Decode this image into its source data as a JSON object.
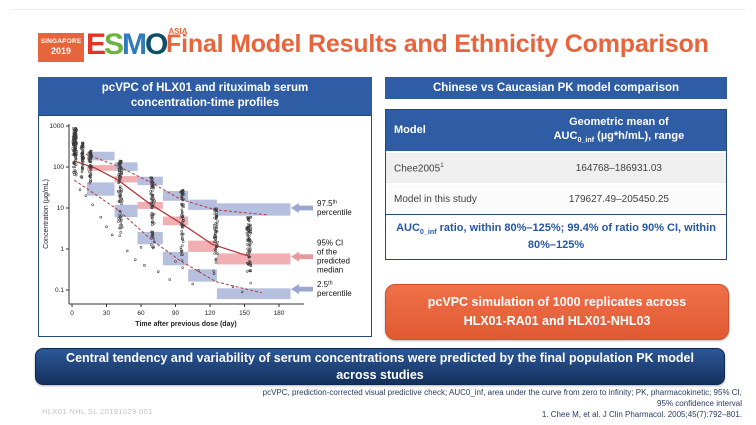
{
  "colors": {
    "accent_blue": "#2e5da6",
    "accent_orange": "#e8643c",
    "dark_navy": "#14305c",
    "box_blue": "#a9b4d8",
    "box_pink": "#f0a6ac",
    "line_red": "#b23b3b",
    "arrow_blue": "#9aa6cf",
    "arrow_pink": "#e79a9e"
  },
  "header": {
    "badge_line1": "SINGAPORE",
    "badge_line2": "2019",
    "esmo_letters": [
      {
        "ch": "E",
        "color": "#e63329"
      },
      {
        "ch": "S",
        "color": "#6cb33f"
      },
      {
        "ch": "M",
        "color": "#2e7bbf"
      },
      {
        "ch": "O",
        "color": "#0e4e66"
      }
    ],
    "asia": "ASIA",
    "title": "Final Model Results and Ethnicity Comparison"
  },
  "left_panel": {
    "header_line1": "pcVPC of HLX01 and rituximab serum",
    "header_line2": "concentration-time profiles"
  },
  "right_panel": {
    "header": "Chinese vs Caucasian PK model comparison",
    "table": {
      "col1_header": "Model",
      "col2_header_line1": "Geometric mean of",
      "col2_header_line2": {
        "prefix": "AUC",
        "sub": "0_inf",
        "suffix": " (µg*h/mL), range"
      },
      "rows": [
        {
          "model": {
            "text": "Chee2005",
            "sup": "1"
          },
          "value": "164768–186931.03"
        },
        {
          "model": {
            "text": "Model in this study",
            "sup": ""
          },
          "value": "179627.49–205450.25"
        }
      ]
    },
    "ratio_note": {
      "prefix": "AUC",
      "sub": "0_inf",
      "suffix": " ratio, within 80%–125%; 99.4% of ratio 90% CI, within 80%–125%"
    },
    "orange_box_line1": "pcVPC simulation of 1000 replicates across",
    "orange_box_line2": "HLX01-RA01 and HLX01-NHL03"
  },
  "bottom_banner": "Central tendency and variability of serum concentrations were predicted by the final population PK model across studies",
  "footer": {
    "abbrev_line1": "pcVPC, prediction-corrected visual predictive check; AUC0_inf, area under the curve from zero to infinity; PK, pharmacokinetic; 95% CI,",
    "abbrev_line2": "95% confidence interval",
    "citation": "1. Chee M, et al. J Clin Pharmacol. 2005;45(7):792–801.",
    "slide_code": "HLX01 NHL SL 20191029 001"
  },
  "chart_data": {
    "type": "scatter",
    "xlabel": "Time after previous dose (day)",
    "ylabel": "Concentration (µg/mL)",
    "x_ticks": [
      0,
      30,
      60,
      90,
      120,
      150,
      180
    ],
    "y_ticks": [
      1000,
      100,
      10,
      1,
      0.1
    ],
    "xlim": [
      0,
      195
    ],
    "ylim_log": [
      0.1,
      1000
    ],
    "grid": false,
    "bins": [
      {
        "days": [
          13,
          37
        ],
        "upper_ci": [
          145,
          235
        ],
        "median_ci": [
          81,
          111
        ],
        "lower_ci": [
          20,
          42
        ]
      },
      {
        "days": [
          37,
          57
        ],
        "upper_ci": [
          80,
          130
        ],
        "median_ci": [
          42,
          60
        ],
        "lower_ci": [
          6,
          12
        ]
      },
      {
        "days": [
          57,
          79
        ],
        "upper_ci": [
          36,
          58
        ],
        "median_ci": [
          9.5,
          14
        ],
        "lower_ci": [
          1.3,
          2.6
        ]
      },
      {
        "days": [
          79,
          101
        ],
        "upper_ci": [
          15,
          26
        ],
        "median_ci": [
          3.8,
          6.2
        ],
        "lower_ci": [
          0.4,
          0.85
        ]
      },
      {
        "days": [
          101,
          126
        ],
        "upper_ci": [
          9,
          16
        ],
        "median_ci": [
          0.85,
          1.6
        ],
        "lower_ci": [
          0.16,
          0.32
        ]
      },
      {
        "days": [
          126,
          190
        ],
        "upper_ci": [
          6.5,
          13
        ],
        "median_ci": [
          0.42,
          0.78
        ],
        "lower_ci": [
          0.06,
          0.11
        ]
      }
    ],
    "lines": {
      "median": [
        [
          2,
          140
        ],
        [
          20,
          95
        ],
        [
          40,
          48
        ],
        [
          67,
          13
        ],
        [
          95,
          4.2
        ],
        [
          122,
          1.3
        ],
        [
          155,
          0.65
        ]
      ],
      "p975": [
        [
          8,
          225
        ],
        [
          40,
          105
        ],
        [
          70,
          40
        ],
        [
          95,
          16
        ],
        [
          125,
          9
        ],
        [
          170,
          6.8
        ]
      ],
      "p25": [
        [
          2,
          48
        ],
        [
          40,
          9
        ],
        [
          70,
          1.6
        ],
        [
          95,
          0.5
        ],
        [
          125,
          0.16
        ],
        [
          165,
          0.085
        ]
      ]
    },
    "scatter_clusters": [
      {
        "x": 2.5,
        "dx": 2,
        "log_lo": 1.7,
        "log_hi": 2.95,
        "n": 130
      },
      {
        "x": 9,
        "dx": 1.5,
        "log_lo": 1.65,
        "log_hi": 2.6,
        "n": 60
      },
      {
        "x": 16,
        "dx": 1.5,
        "log_lo": 1.4,
        "log_hi": 2.4,
        "n": 55
      },
      {
        "x": 42,
        "dx": 2,
        "log_lo": 0.2,
        "log_hi": 2.15,
        "n": 85
      },
      {
        "x": 70,
        "dx": 2,
        "log_lo": -0.3,
        "log_hi": 1.75,
        "n": 75
      },
      {
        "x": 96,
        "dx": 2,
        "log_lo": -0.55,
        "log_hi": 1.45,
        "n": 65
      },
      {
        "x": 125,
        "dx": 2,
        "log_lo": -0.8,
        "log_hi": 1.0,
        "n": 60
      },
      {
        "x": 154,
        "dx": 2.5,
        "log_lo": -1.1,
        "log_hi": 0.78,
        "n": 80
      }
    ],
    "outliers": [
      [
        7,
        28
      ],
      [
        12,
        20
      ],
      [
        18,
        12
      ],
      [
        25,
        6
      ],
      [
        30,
        3.5
      ],
      [
        35,
        2.2
      ],
      [
        48,
        0.9
      ],
      [
        55,
        0.55
      ],
      [
        60,
        1.1
      ],
      [
        63,
        0.4
      ],
      [
        75,
        0.28
      ],
      [
        85,
        0.18
      ],
      [
        90,
        0.5
      ],
      [
        105,
        0.14
      ],
      [
        110,
        0.3
      ],
      [
        140,
        0.12
      ],
      [
        148,
        0.09
      ]
    ],
    "annotations": [
      {
        "arrow": "blue",
        "conc": 10,
        "lines": [
          [
            "97.5",
            "th"
          ],
          [
            "percentile"
          ]
        ]
      },
      {
        "arrow": "pink",
        "conc": 0.65,
        "lines": [
          [
            "95% CI"
          ],
          [
            "of the"
          ],
          [
            "predicted"
          ],
          [
            "median"
          ]
        ]
      },
      {
        "arrow": "blue",
        "conc": 0.105,
        "lines": [
          [
            "2.5",
            "th"
          ],
          [
            "percentile"
          ]
        ]
      }
    ]
  }
}
